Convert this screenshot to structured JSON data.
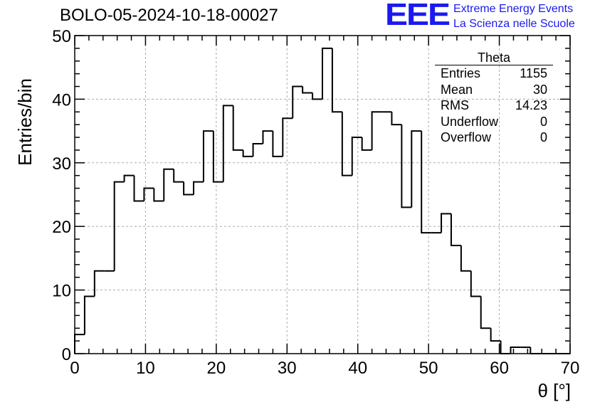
{
  "title": "BOLO-05-2024-10-18-00027",
  "logo": {
    "text": "EEE",
    "line1": "Extreme Energy Events",
    "line2": "La Scienza nelle Scuole",
    "color": "#1a1aee"
  },
  "stats_box": {
    "title": "Theta",
    "rows": [
      {
        "label": "Entries",
        "value": "1155"
      },
      {
        "label": "Mean",
        "value": "30"
      },
      {
        "label": "RMS",
        "value": "14.23"
      },
      {
        "label": "Underflow",
        "value": "0"
      },
      {
        "label": "Overflow",
        "value": "0"
      }
    ]
  },
  "chart_data": {
    "type": "bar",
    "style": "step-histogram",
    "title": "BOLO-05-2024-10-18-00027",
    "xlabel": "θ [°]",
    "ylabel": "Entries/bin",
    "xlim": [
      0,
      70
    ],
    "ylim": [
      0,
      50
    ],
    "bin_width": 1.4,
    "bin_edges_start": 0,
    "values": [
      3,
      9,
      13,
      13,
      27,
      28,
      24,
      26,
      24,
      29,
      27,
      25,
      27,
      35,
      27,
      39,
      32,
      31,
      33,
      35,
      31,
      37,
      42,
      41,
      40,
      48,
      38,
      28,
      34,
      32,
      38,
      38,
      36,
      23,
      35,
      19,
      19,
      22,
      17,
      13,
      9,
      4,
      2,
      0,
      1,
      1,
      0,
      0,
      0,
      0
    ],
    "x_ticks": [
      0,
      10,
      20,
      30,
      40,
      50,
      60,
      70
    ],
    "y_ticks": [
      0,
      10,
      20,
      30,
      40,
      50
    ],
    "x_tick_labels": [
      "0",
      "10",
      "20",
      "30",
      "40",
      "50",
      "60",
      "70"
    ],
    "y_tick_labels": [
      "0",
      "10",
      "20",
      "30",
      "40",
      "50"
    ],
    "grid": true,
    "line_color": "#000000",
    "grid_color": "#aaaaaa"
  }
}
